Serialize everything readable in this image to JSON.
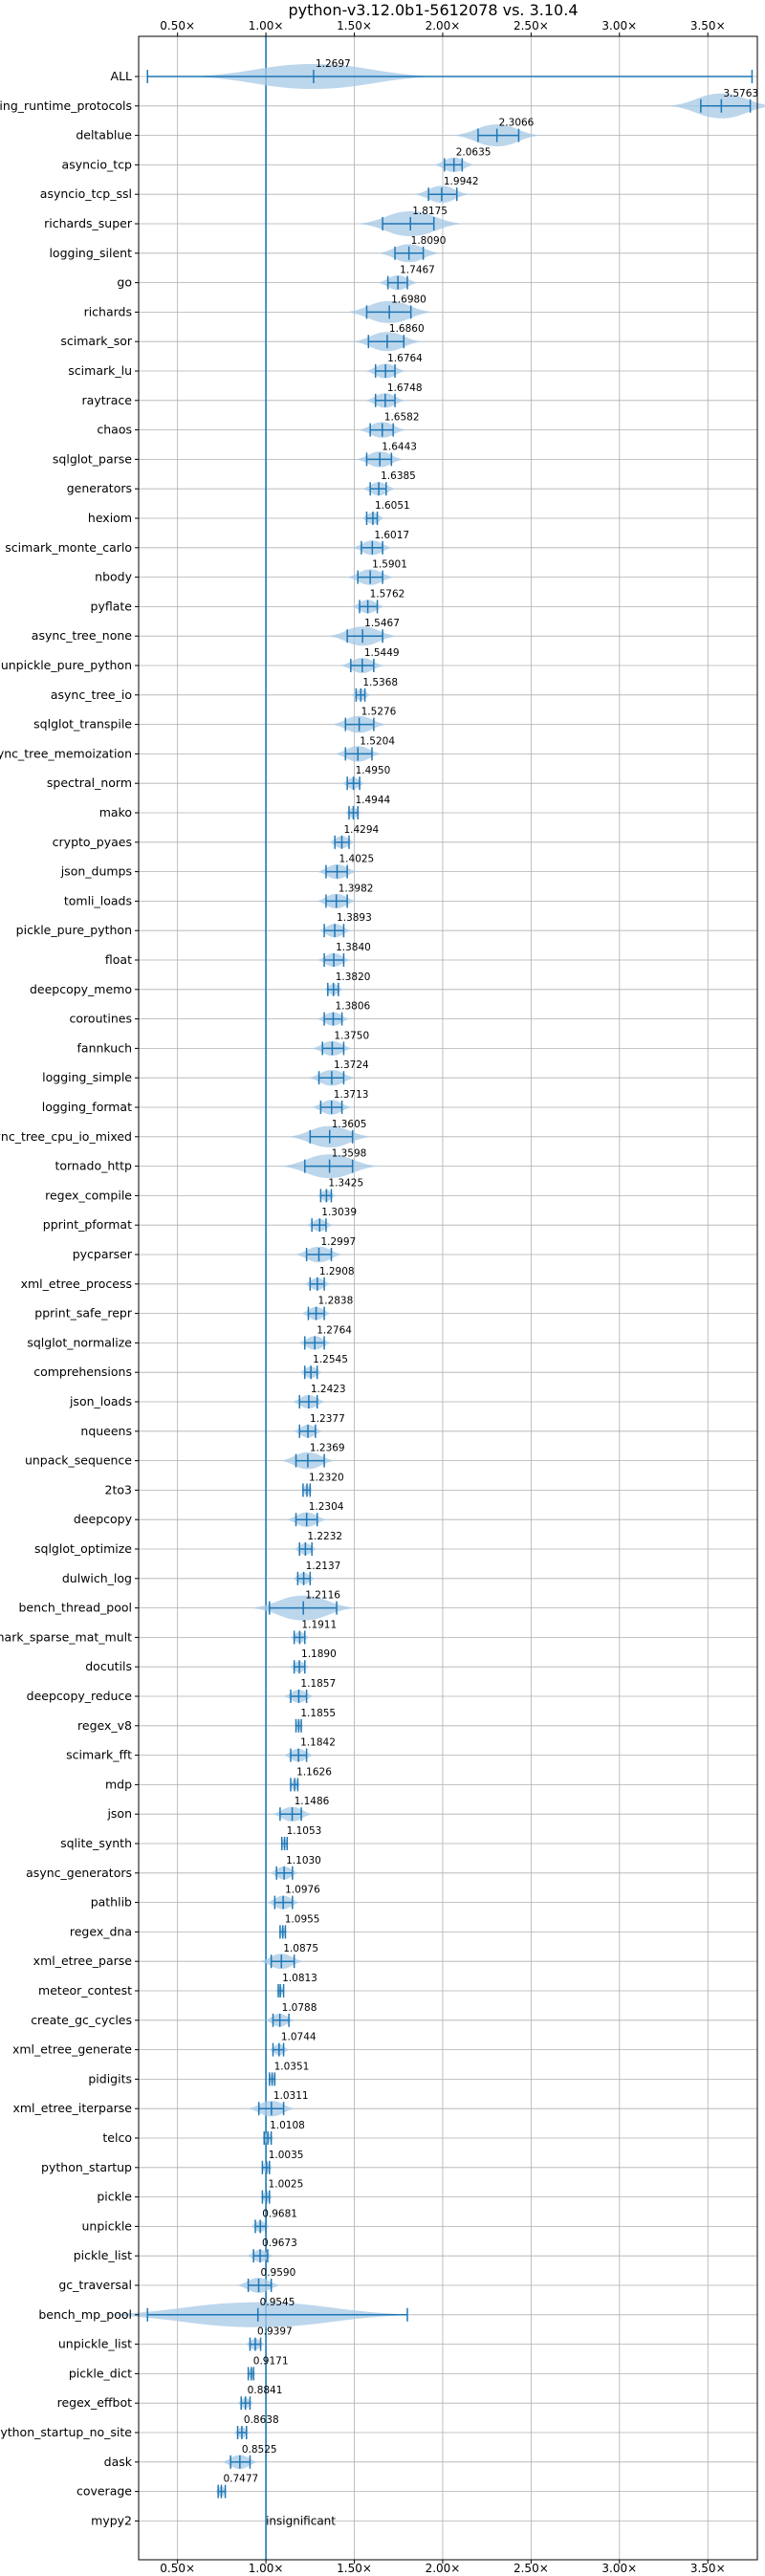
{
  "chart_data": {
    "type": "violin",
    "title": "python-v3.12.0b1-5612078 vs. 3.10.4",
    "xlim": [
      0.28,
      3.78
    ],
    "xticks": [
      0.5,
      1.0,
      1.5,
      2.0,
      2.5,
      3.0,
      3.5
    ],
    "xtick_labels": [
      "0.50×",
      "1.00×",
      "1.50×",
      "2.00×",
      "2.50×",
      "3.00×",
      "3.50×"
    ],
    "reference_line": 1.0,
    "grid": true,
    "axis_color": "#1f77b4",
    "violin_color": "#a6c8e6",
    "benchmarks": [
      {
        "name": "ALL",
        "label": "1.2697",
        "value": 1.2697,
        "min": 0.33,
        "max": 3.75,
        "spread": 0.7
      },
      {
        "name": "typing_runtime_protocols",
        "label": "3.5763",
        "value": 3.5763,
        "min": 3.46,
        "max": 3.74,
        "spread": 0.3
      },
      {
        "name": "deltablue",
        "label": "2.3066",
        "value": 2.3066,
        "min": 2.2,
        "max": 2.43,
        "spread": 0.25
      },
      {
        "name": "asyncio_tcp",
        "label": "2.0635",
        "value": 2.0635,
        "min": 2.01,
        "max": 2.11,
        "spread": 0.12
      },
      {
        "name": "asyncio_tcp_ssl",
        "label": "1.9942",
        "value": 1.9942,
        "min": 1.92,
        "max": 2.08,
        "spread": 0.16
      },
      {
        "name": "richards_super",
        "label": "1.8175",
        "value": 1.8175,
        "min": 1.66,
        "max": 1.95,
        "spread": 0.3
      },
      {
        "name": "logging_silent",
        "label": "1.8090",
        "value": 1.809,
        "min": 1.73,
        "max": 1.89,
        "spread": 0.18
      },
      {
        "name": "go",
        "label": "1.7467",
        "value": 1.7467,
        "min": 1.69,
        "max": 1.8,
        "spread": 0.12
      },
      {
        "name": "richards",
        "label": "1.6980",
        "value": 1.698,
        "min": 1.57,
        "max": 1.82,
        "spread": 0.25
      },
      {
        "name": "scimark_sor",
        "label": "1.6860",
        "value": 1.686,
        "min": 1.58,
        "max": 1.78,
        "spread": 0.2
      },
      {
        "name": "scimark_lu",
        "label": "1.6764",
        "value": 1.6764,
        "min": 1.62,
        "max": 1.73,
        "spread": 0.12
      },
      {
        "name": "raytrace",
        "label": "1.6748",
        "value": 1.6748,
        "min": 1.62,
        "max": 1.73,
        "spread": 0.12
      },
      {
        "name": "chaos",
        "label": "1.6582",
        "value": 1.6582,
        "min": 1.59,
        "max": 1.72,
        "spread": 0.14
      },
      {
        "name": "sqlglot_parse",
        "label": "1.6443",
        "value": 1.6443,
        "min": 1.57,
        "max": 1.71,
        "spread": 0.14
      },
      {
        "name": "generators",
        "label": "1.6385",
        "value": 1.6385,
        "min": 1.59,
        "max": 1.68,
        "spread": 0.1
      },
      {
        "name": "hexiom",
        "label": "1.6051",
        "value": 1.6051,
        "min": 1.57,
        "max": 1.63,
        "spread": 0.07
      },
      {
        "name": "scimark_monte_carlo",
        "label": "1.6017",
        "value": 1.6017,
        "min": 1.54,
        "max": 1.66,
        "spread": 0.12
      },
      {
        "name": "nbody",
        "label": "1.5901",
        "value": 1.5901,
        "min": 1.52,
        "max": 1.66,
        "spread": 0.14
      },
      {
        "name": "pyflate",
        "label": "1.5762",
        "value": 1.5762,
        "min": 1.53,
        "max": 1.63,
        "spread": 0.1
      },
      {
        "name": "async_tree_none",
        "label": "1.5467",
        "value": 1.5467,
        "min": 1.46,
        "max": 1.66,
        "spread": 0.2
      },
      {
        "name": "unpickle_pure_python",
        "label": "1.5449",
        "value": 1.5449,
        "min": 1.48,
        "max": 1.61,
        "spread": 0.13
      },
      {
        "name": "async_tree_io",
        "label": "1.5368",
        "value": 1.5368,
        "min": 1.51,
        "max": 1.56,
        "spread": 0.06
      },
      {
        "name": "sqlglot_transpile",
        "label": "1.5276",
        "value": 1.5276,
        "min": 1.45,
        "max": 1.61,
        "spread": 0.16
      },
      {
        "name": "async_tree_memoization",
        "label": "1.5204",
        "value": 1.5204,
        "min": 1.45,
        "max": 1.6,
        "spread": 0.14
      },
      {
        "name": "spectral_norm",
        "label": "1.4950",
        "value": 1.495,
        "min": 1.46,
        "max": 1.53,
        "spread": 0.07
      },
      {
        "name": "mako",
        "label": "1.4944",
        "value": 1.4944,
        "min": 1.47,
        "max": 1.52,
        "spread": 0.05
      },
      {
        "name": "crypto_pyaes",
        "label": "1.4294",
        "value": 1.4294,
        "min": 1.39,
        "max": 1.47,
        "spread": 0.08
      },
      {
        "name": "json_dumps",
        "label": "1.4025",
        "value": 1.4025,
        "min": 1.34,
        "max": 1.46,
        "spread": 0.12
      },
      {
        "name": "tomli_loads",
        "label": "1.3982",
        "value": 1.3982,
        "min": 1.34,
        "max": 1.46,
        "spread": 0.12
      },
      {
        "name": "pickle_pure_python",
        "label": "1.3893",
        "value": 1.3893,
        "min": 1.33,
        "max": 1.44,
        "spread": 0.1
      },
      {
        "name": "float",
        "label": "1.3840",
        "value": 1.384,
        "min": 1.33,
        "max": 1.44,
        "spread": 0.1
      },
      {
        "name": "deepcopy_memo",
        "label": "1.3820",
        "value": 1.382,
        "min": 1.35,
        "max": 1.41,
        "spread": 0.06
      },
      {
        "name": "coroutines",
        "label": "1.3806",
        "value": 1.3806,
        "min": 1.33,
        "max": 1.43,
        "spread": 0.1
      },
      {
        "name": "fannkuch",
        "label": "1.3750",
        "value": 1.375,
        "min": 1.32,
        "max": 1.44,
        "spread": 0.12
      },
      {
        "name": "logging_simple",
        "label": "1.3724",
        "value": 1.3724,
        "min": 1.3,
        "max": 1.44,
        "spread": 0.14
      },
      {
        "name": "logging_format",
        "label": "1.3713",
        "value": 1.3713,
        "min": 1.31,
        "max": 1.43,
        "spread": 0.12
      },
      {
        "name": "async_tree_cpu_io_mixed",
        "label": "1.3605",
        "value": 1.3605,
        "min": 1.25,
        "max": 1.49,
        "spread": 0.24
      },
      {
        "name": "tornado_http",
        "label": "1.3598",
        "value": 1.3598,
        "min": 1.22,
        "max": 1.49,
        "spread": 0.28
      },
      {
        "name": "regex_compile",
        "label": "1.3425",
        "value": 1.3425,
        "min": 1.31,
        "max": 1.37,
        "spread": 0.06
      },
      {
        "name": "pprint_pformat",
        "label": "1.3039",
        "value": 1.3039,
        "min": 1.26,
        "max": 1.34,
        "spread": 0.08
      },
      {
        "name": "pycparser",
        "label": "1.2997",
        "value": 1.2997,
        "min": 1.23,
        "max": 1.37,
        "spread": 0.14
      },
      {
        "name": "xml_etree_process",
        "label": "1.2908",
        "value": 1.2908,
        "min": 1.25,
        "max": 1.33,
        "spread": 0.08
      },
      {
        "name": "pprint_safe_repr",
        "label": "1.2838",
        "value": 1.2838,
        "min": 1.24,
        "max": 1.33,
        "spread": 0.09
      },
      {
        "name": "sqlglot_normalize",
        "label": "1.2764",
        "value": 1.2764,
        "min": 1.22,
        "max": 1.33,
        "spread": 0.1
      },
      {
        "name": "comprehensions",
        "label": "1.2545",
        "value": 1.2545,
        "min": 1.22,
        "max": 1.29,
        "spread": 0.07
      },
      {
        "name": "json_loads",
        "label": "1.2423",
        "value": 1.2423,
        "min": 1.19,
        "max": 1.29,
        "spread": 0.1
      },
      {
        "name": "nqueens",
        "label": "1.2377",
        "value": 1.2377,
        "min": 1.19,
        "max": 1.28,
        "spread": 0.09
      },
      {
        "name": "unpack_sequence",
        "label": "1.2369",
        "value": 1.2369,
        "min": 1.17,
        "max": 1.33,
        "spread": 0.16
      },
      {
        "name": "2to3",
        "label": "1.2320",
        "value": 1.232,
        "min": 1.21,
        "max": 1.25,
        "spread": 0.04
      },
      {
        "name": "deepcopy",
        "label": "1.2304",
        "value": 1.2304,
        "min": 1.17,
        "max": 1.29,
        "spread": 0.12
      },
      {
        "name": "sqlglot_optimize",
        "label": "1.2232",
        "value": 1.2232,
        "min": 1.19,
        "max": 1.26,
        "spread": 0.07
      },
      {
        "name": "dulwich_log",
        "label": "1.2137",
        "value": 1.2137,
        "min": 1.18,
        "max": 1.25,
        "spread": 0.07
      },
      {
        "name": "bench_thread_pool",
        "label": "1.2116",
        "value": 1.2116,
        "min": 1.02,
        "max": 1.4,
        "spread": 0.3
      },
      {
        "name": "scimark_sparse_mat_mult",
        "label": "1.1911",
        "value": 1.1911,
        "min": 1.16,
        "max": 1.22,
        "spread": 0.06
      },
      {
        "name": "docutils",
        "label": "1.1890",
        "value": 1.189,
        "min": 1.16,
        "max": 1.22,
        "spread": 0.06
      },
      {
        "name": "deepcopy_reduce",
        "label": "1.1857",
        "value": 1.1857,
        "min": 1.14,
        "max": 1.23,
        "spread": 0.09
      },
      {
        "name": "regex_v8",
        "label": "1.1855",
        "value": 1.1855,
        "min": 1.17,
        "max": 1.2,
        "spread": 0.03
      },
      {
        "name": "scimark_fft",
        "label": "1.1842",
        "value": 1.1842,
        "min": 1.14,
        "max": 1.23,
        "spread": 0.09
      },
      {
        "name": "mdp",
        "label": "1.1626",
        "value": 1.1626,
        "min": 1.14,
        "max": 1.18,
        "spread": 0.04
      },
      {
        "name": "json",
        "label": "1.1486",
        "value": 1.1486,
        "min": 1.08,
        "max": 1.2,
        "spread": 0.12
      },
      {
        "name": "sqlite_synth",
        "label": "1.1053",
        "value": 1.1053,
        "min": 1.09,
        "max": 1.12,
        "spread": 0.03
      },
      {
        "name": "async_generators",
        "label": "1.1030",
        "value": 1.103,
        "min": 1.06,
        "max": 1.15,
        "spread": 0.09
      },
      {
        "name": "pathlib",
        "label": "1.0976",
        "value": 1.0976,
        "min": 1.05,
        "max": 1.15,
        "spread": 0.1
      },
      {
        "name": "regex_dna",
        "label": "1.0955",
        "value": 1.0955,
        "min": 1.08,
        "max": 1.11,
        "spread": 0.03
      },
      {
        "name": "xml_etree_parse",
        "label": "1.0875",
        "value": 1.0875,
        "min": 1.03,
        "max": 1.16,
        "spread": 0.13
      },
      {
        "name": "meteor_contest",
        "label": "1.0813",
        "value": 1.0813,
        "min": 1.07,
        "max": 1.1,
        "spread": 0.03
      },
      {
        "name": "create_gc_cycles",
        "label": "1.0788",
        "value": 1.0788,
        "min": 1.04,
        "max": 1.13,
        "spread": 0.09
      },
      {
        "name": "xml_etree_generate",
        "label": "1.0744",
        "value": 1.0744,
        "min": 1.04,
        "max": 1.1,
        "spread": 0.06
      },
      {
        "name": "pidigits",
        "label": "1.0351",
        "value": 1.0351,
        "min": 1.02,
        "max": 1.05,
        "spread": 0.03
      },
      {
        "name": "xml_etree_iterparse",
        "label": "1.0311",
        "value": 1.0311,
        "min": 0.96,
        "max": 1.1,
        "spread": 0.14
      },
      {
        "name": "telco",
        "label": "1.0108",
        "value": 1.0108,
        "min": 0.99,
        "max": 1.03,
        "spread": 0.04
      },
      {
        "name": "python_startup",
        "label": "1.0035",
        "value": 1.0035,
        "min": 0.98,
        "max": 1.02,
        "spread": 0.04
      },
      {
        "name": "pickle",
        "label": "1.0025",
        "value": 1.0025,
        "min": 0.98,
        "max": 1.02,
        "spread": 0.04
      },
      {
        "name": "unpickle",
        "label": "0.9681",
        "value": 0.9681,
        "min": 0.94,
        "max": 1.0,
        "spread": 0.06
      },
      {
        "name": "pickle_list",
        "label": "0.9673",
        "value": 0.9673,
        "min": 0.93,
        "max": 1.01,
        "spread": 0.08
      },
      {
        "name": "gc_traversal",
        "label": "0.9590",
        "value": 0.959,
        "min": 0.9,
        "max": 1.03,
        "spread": 0.13
      },
      {
        "name": "bench_mp_pool",
        "label": "0.9545",
        "value": 0.9545,
        "min": 0.33,
        "max": 1.8,
        "spread": 0.9
      },
      {
        "name": "unpickle_list",
        "label": "0.9397",
        "value": 0.9397,
        "min": 0.91,
        "max": 0.97,
        "spread": 0.06
      },
      {
        "name": "pickle_dict",
        "label": "0.9171",
        "value": 0.9171,
        "min": 0.9,
        "max": 0.93,
        "spread": 0.03
      },
      {
        "name": "regex_effbot",
        "label": "0.8841",
        "value": 0.8841,
        "min": 0.86,
        "max": 0.91,
        "spread": 0.05
      },
      {
        "name": "python_startup_no_site",
        "label": "0.8638",
        "value": 0.8638,
        "min": 0.84,
        "max": 0.89,
        "spread": 0.05
      },
      {
        "name": "dask",
        "label": "0.8525",
        "value": 0.8525,
        "min": 0.8,
        "max": 0.91,
        "spread": 0.11
      },
      {
        "name": "coverage",
        "label": "0.7477",
        "value": 0.7477,
        "min": 0.73,
        "max": 0.77,
        "spread": 0.04
      },
      {
        "name": "mypy2",
        "label": "insignificant",
        "value": null,
        "min": null,
        "max": null,
        "spread": null
      }
    ]
  }
}
